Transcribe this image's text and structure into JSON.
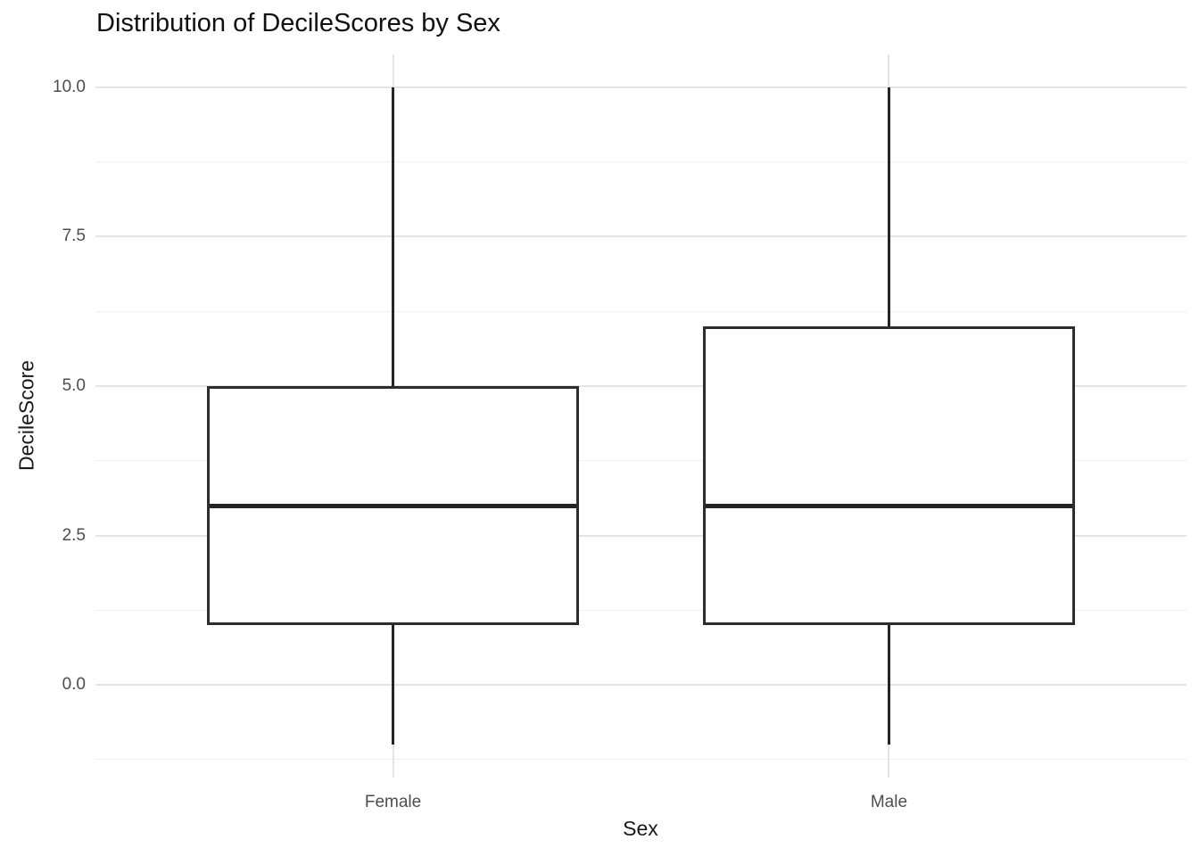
{
  "title": "Distribution of DecileScores by Sex",
  "chart_data": {
    "type": "boxplot",
    "title": "Distribution of DecileScores by Sex",
    "xlabel": "Sex",
    "ylabel": "DecileScore",
    "categories": [
      "Female",
      "Male"
    ],
    "series": [
      {
        "name": "Female",
        "whisker_low": -1,
        "q1": 1,
        "median": 3,
        "q3": 5,
        "whisker_high": 10
      },
      {
        "name": "Male",
        "whisker_low": -1,
        "q1": 1,
        "median": 3,
        "q3": 6,
        "whisker_high": 10
      }
    ],
    "y_ticks": [
      0.0,
      2.5,
      5.0,
      7.5,
      10.0
    ],
    "y_tick_labels": [
      "0.0",
      "2.5",
      "5.0",
      "7.5",
      "10.0"
    ],
    "ylim": [
      -1.55,
      10.55
    ],
    "grid": true,
    "legend": "none",
    "colors": {
      "background": "#ffffff",
      "grid_major": "#e4e4e4",
      "grid_minor": "#f0f0f0",
      "box_border": "#2d2d2d",
      "median": "#242424",
      "whisker": "#242424",
      "tick_label": "#4d4d4d",
      "title": "#111111"
    }
  }
}
